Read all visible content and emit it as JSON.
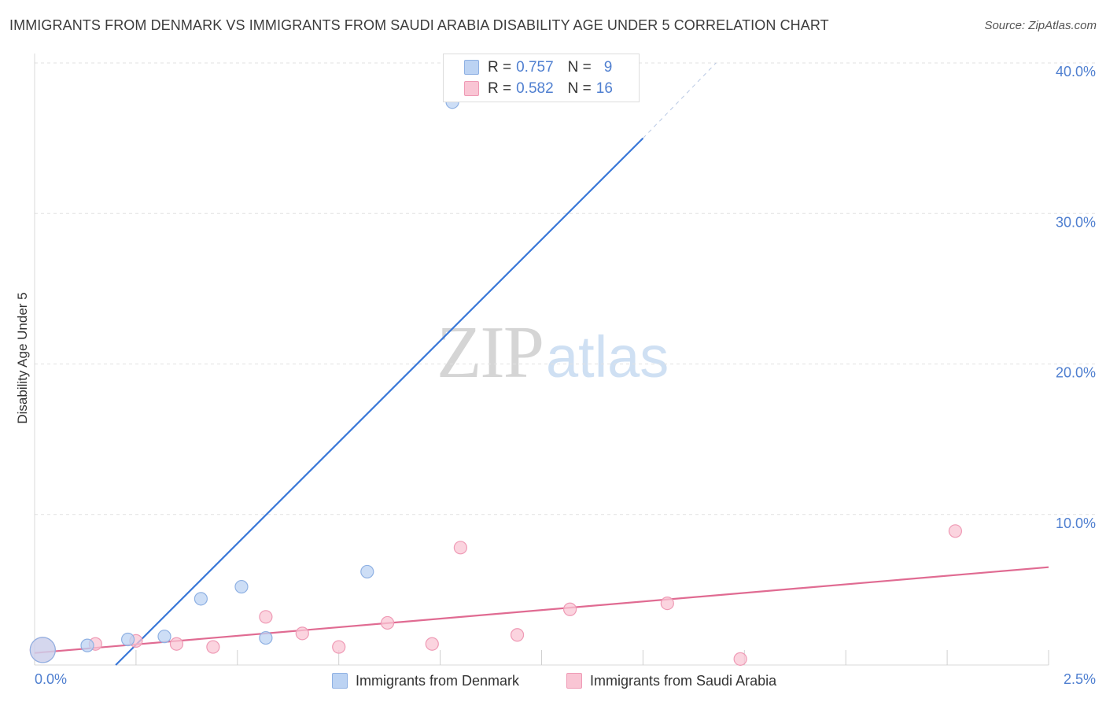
{
  "title": "IMMIGRANTS FROM DENMARK VS IMMIGRANTS FROM SAUDI ARABIA DISABILITY AGE UNDER 5 CORRELATION CHART",
  "source": "Source: ZipAtlas.com",
  "watermark": {
    "zip": "ZIP",
    "atlas": "atlas"
  },
  "legend": {
    "rows": [
      {
        "r_label": "R =",
        "r_value": "0.757",
        "n_label": "N =",
        "n_value": "9",
        "fill": "#bcd3f3",
        "stroke": "#8fb1e3"
      },
      {
        "r_label": "R =",
        "r_value": "0.582",
        "n_label": "N =",
        "n_value": "16",
        "fill": "#f9c5d4",
        "stroke": "#ef9ab5"
      }
    ]
  },
  "bottom_legend": {
    "denmark": "Immigrants from Denmark",
    "saudi": "Immigrants from Saudi Arabia"
  },
  "chart_data": {
    "type": "scatter",
    "title": "IMMIGRANTS FROM DENMARK VS IMMIGRANTS FROM SAUDI ARABIA DISABILITY AGE UNDER 5 CORRELATION CHART",
    "xlabel": "",
    "ylabel": "Disability Age Under 5",
    "xlim": [
      0.0,
      2.5
    ],
    "ylim": [
      0.0,
      40.0
    ],
    "x_tick_labels": [
      "0.0%",
      "2.5%"
    ],
    "y_ticks": [
      10,
      20,
      30,
      40
    ],
    "y_tick_labels": [
      "10.0%",
      "20.0%",
      "30.0%",
      "40.0%"
    ],
    "grid": true,
    "series": [
      {
        "name": "Immigrants from Denmark",
        "color": "#8fb1e3",
        "fill": "#bcd3f3",
        "line_color": "#3a78d8",
        "points": [
          {
            "x": 0.02,
            "y": 1.0,
            "big": true
          },
          {
            "x": 0.13,
            "y": 1.3
          },
          {
            "x": 0.23,
            "y": 1.7
          },
          {
            "x": 0.32,
            "y": 1.9
          },
          {
            "x": 0.41,
            "y": 4.4
          },
          {
            "x": 0.51,
            "y": 5.2
          },
          {
            "x": 0.57,
            "y": 1.8
          },
          {
            "x": 0.82,
            "y": 6.2
          },
          {
            "x": 1.03,
            "y": 37.4
          }
        ],
        "trend": {
          "x0": 0.2,
          "y0": 0.0,
          "x1": 1.5,
          "y1": 35.0,
          "x_dash_end": 1.68,
          "y_dash_end": 40.0
        }
      },
      {
        "name": "Immigrants from Saudi Arabia",
        "color": "#ef9ab5",
        "fill": "#f9c5d4",
        "line_color": "#e06b92",
        "points": [
          {
            "x": 0.02,
            "y": 1.0,
            "big": true
          },
          {
            "x": 0.15,
            "y": 1.4
          },
          {
            "x": 0.25,
            "y": 1.6
          },
          {
            "x": 0.35,
            "y": 1.4
          },
          {
            "x": 0.44,
            "y": 1.2
          },
          {
            "x": 0.57,
            "y": 3.2
          },
          {
            "x": 0.66,
            "y": 2.1
          },
          {
            "x": 0.75,
            "y": 1.2
          },
          {
            "x": 0.87,
            "y": 2.8
          },
          {
            "x": 0.98,
            "y": 1.4
          },
          {
            "x": 1.05,
            "y": 7.8
          },
          {
            "x": 1.19,
            "y": 2.0
          },
          {
            "x": 1.32,
            "y": 3.7
          },
          {
            "x": 1.56,
            "y": 4.1
          },
          {
            "x": 1.74,
            "y": 0.4
          },
          {
            "x": 2.27,
            "y": 8.9
          }
        ],
        "trend": {
          "x0": 0.0,
          "y0": 0.8,
          "x1": 2.5,
          "y1": 6.5
        }
      }
    ]
  }
}
